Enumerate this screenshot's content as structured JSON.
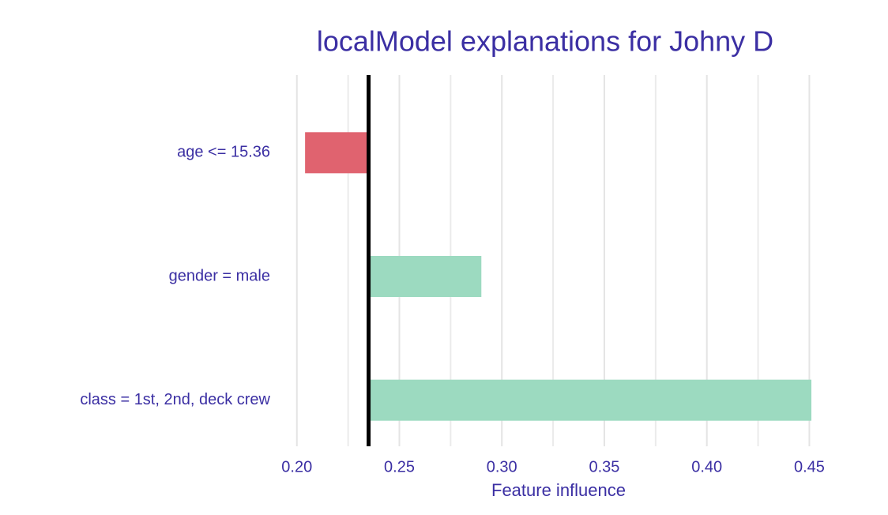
{
  "chart_data": {
    "type": "bar",
    "orientation": "horizontal",
    "title": "localModel explanations for Johny D",
    "x_label": "Feature influence",
    "categories": [
      "age <= 15.36",
      "gender = male",
      "class = 1st, 2nd, deck crew"
    ],
    "values": [
      0.204,
      0.29,
      0.451
    ],
    "colors": [
      "#e0636f",
      "#9cdac0",
      "#9cdac0"
    ],
    "baseline": 0.235,
    "xlim": [
      0.192,
      0.456
    ],
    "xticks": [
      {
        "value": 0.2,
        "label": "0.20"
      },
      {
        "value": 0.25,
        "label": "0.25"
      },
      {
        "value": 0.3,
        "label": "0.30"
      },
      {
        "value": 0.35,
        "label": "0.35"
      },
      {
        "value": 0.4,
        "label": "0.40"
      },
      {
        "value": 0.45,
        "label": "0.45"
      }
    ],
    "grid": true
  }
}
